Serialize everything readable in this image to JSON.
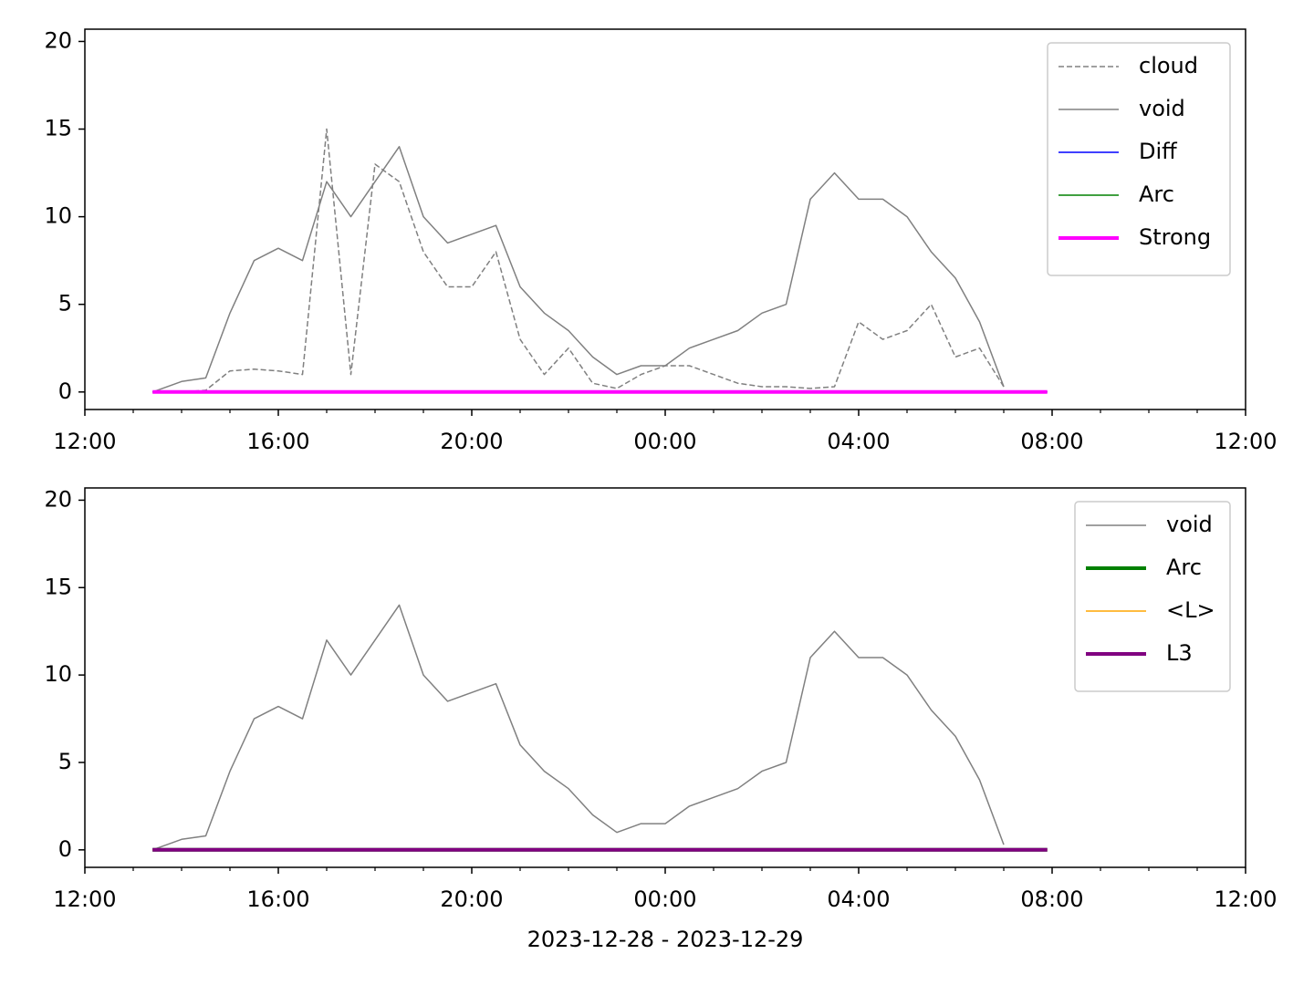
{
  "chart_data": [
    {
      "type": "line",
      "x": [
        13.4,
        14,
        14.5,
        15,
        15.5,
        16,
        16.5,
        17,
        17.5,
        18,
        18.5,
        19,
        19.5,
        20,
        20.5,
        21,
        21.5,
        22,
        22.5,
        23,
        23.5,
        24,
        24.5,
        25,
        25.5,
        26,
        26.5,
        27,
        27.5,
        28,
        28.5,
        29,
        29.5,
        30,
        30.5,
        31,
        31.5,
        31.9
      ],
      "xlim": [
        12,
        36
      ],
      "xticks": [
        {
          "value": 12,
          "label": "12:00"
        },
        {
          "value": 16,
          "label": "16:00"
        },
        {
          "value": 20,
          "label": "20:00"
        },
        {
          "value": 24,
          "label": "00:00"
        },
        {
          "value": 28,
          "label": "04:00"
        },
        {
          "value": 32,
          "label": "08:00"
        },
        {
          "value": 36,
          "label": "12:00"
        }
      ],
      "xminorticks": [
        13,
        14,
        15,
        17,
        18,
        19,
        21,
        22,
        23,
        25,
        26,
        27,
        29,
        30,
        31,
        33,
        34,
        35
      ],
      "ylim": [
        -1,
        20.7
      ],
      "yticks": [
        0,
        5,
        10,
        15,
        20
      ],
      "legend": "upper right",
      "series": [
        {
          "name": "cloud",
          "color": "#808080",
          "dashed": true,
          "linewidth": 1.5,
          "values": [
            0,
            0,
            0.1,
            1.2,
            1.3,
            1.2,
            1,
            15,
            1,
            13,
            12,
            8,
            6,
            6,
            8,
            3,
            1,
            2.5,
            0.5,
            0.2,
            1,
            1.5,
            1.5,
            1,
            0.5,
            0.3,
            0.3,
            0.2,
            0.3,
            4,
            3,
            3.5,
            5,
            2,
            2.5,
            0.3,
            null,
            null
          ]
        },
        {
          "name": "void",
          "color": "#808080",
          "linewidth": 1.5,
          "values": [
            0,
            0.6,
            0.8,
            4.5,
            7.5,
            8.2,
            7.5,
            12,
            10,
            12,
            14,
            10,
            8.5,
            9,
            9.5,
            6,
            4.5,
            3.5,
            2,
            1,
            1.5,
            1.5,
            2.5,
            3,
            3.5,
            4.5,
            5,
            11,
            12.5,
            11,
            11,
            10,
            8,
            6.5,
            4,
            0.3,
            null,
            null
          ]
        },
        {
          "name": "Diff",
          "color": "#0000ff",
          "linewidth": 1.5,
          "values": [
            0,
            0,
            0,
            0,
            0,
            0,
            0,
            0,
            0,
            0,
            0,
            0,
            0,
            0,
            0,
            0,
            0,
            0,
            0,
            0,
            0,
            0,
            0,
            0,
            0,
            0,
            0,
            0,
            0,
            0,
            0,
            0,
            0,
            0,
            0,
            0,
            0,
            0
          ]
        },
        {
          "name": "Arc",
          "color": "#008000",
          "linewidth": 1.5,
          "values": [
            0,
            0,
            0,
            0,
            0,
            0,
            0,
            0,
            0,
            0,
            0,
            0,
            0,
            0,
            0,
            0,
            0,
            0,
            0,
            0,
            0,
            0,
            0,
            0,
            0,
            0,
            0,
            0,
            0,
            0,
            0,
            0,
            0,
            0,
            0,
            0,
            0,
            0
          ]
        },
        {
          "name": "Strong",
          "color": "#ff00ff",
          "linewidth": 4,
          "values": [
            0,
            0,
            0,
            0,
            0,
            0,
            0,
            0,
            0,
            0,
            0,
            0,
            0,
            0,
            0,
            0,
            0,
            0,
            0,
            0,
            0,
            0,
            0,
            0,
            0,
            0,
            0,
            0,
            0,
            0,
            0,
            0,
            0,
            0,
            0,
            0,
            0,
            0
          ]
        }
      ]
    },
    {
      "type": "line",
      "xlabel": "2023-12-28 - 2023-12-29",
      "x": [
        13.4,
        14,
        14.5,
        15,
        15.5,
        16,
        16.5,
        17,
        17.5,
        18,
        18.5,
        19,
        19.5,
        20,
        20.5,
        21,
        21.5,
        22,
        22.5,
        23,
        23.5,
        24,
        24.5,
        25,
        25.5,
        26,
        26.5,
        27,
        27.5,
        28,
        28.5,
        29,
        29.5,
        30,
        30.5,
        31,
        31.5,
        31.9
      ],
      "xlim": [
        12,
        36
      ],
      "xticks": [
        {
          "value": 12,
          "label": "12:00"
        },
        {
          "value": 16,
          "label": "16:00"
        },
        {
          "value": 20,
          "label": "20:00"
        },
        {
          "value": 24,
          "label": "00:00"
        },
        {
          "value": 28,
          "label": "04:00"
        },
        {
          "value": 32,
          "label": "08:00"
        },
        {
          "value": 36,
          "label": "12:00"
        }
      ],
      "xminorticks": [
        13,
        14,
        15,
        17,
        18,
        19,
        21,
        22,
        23,
        25,
        26,
        27,
        29,
        30,
        31,
        33,
        34,
        35
      ],
      "ylim": [
        -1,
        20.7
      ],
      "yticks": [
        0,
        5,
        10,
        15,
        20
      ],
      "legend": "upper right",
      "series": [
        {
          "name": "void",
          "color": "#808080",
          "linewidth": 1.5,
          "values": [
            0,
            0.6,
            0.8,
            4.5,
            7.5,
            8.2,
            7.5,
            12,
            10,
            12,
            14,
            10,
            8.5,
            9,
            9.5,
            6,
            4.5,
            3.5,
            2,
            1,
            1.5,
            1.5,
            2.5,
            3,
            3.5,
            4.5,
            5,
            11,
            12.5,
            11,
            11,
            10,
            8,
            6.5,
            4,
            0.3,
            null,
            null
          ]
        },
        {
          "name": "Arc",
          "color": "#008000",
          "linewidth": 4,
          "values": [
            0,
            0,
            0,
            0,
            0,
            0,
            0,
            0,
            0,
            0,
            0,
            0,
            0,
            0,
            0,
            0,
            0,
            0,
            0,
            0,
            0,
            0,
            0,
            0,
            0,
            0,
            0,
            0,
            0,
            0,
            0,
            0,
            0,
            0,
            0,
            0,
            0,
            0
          ]
        },
        {
          "name": "<L>",
          "color": "#ffa500",
          "linewidth": 1.5,
          "values": [
            0,
            0,
            0,
            0,
            0,
            0,
            0,
            0,
            0,
            0,
            0,
            0,
            0,
            0,
            0,
            0,
            0,
            0,
            0,
            0,
            0,
            0,
            0,
            0,
            0,
            0,
            0,
            0,
            0,
            0,
            0,
            0,
            0,
            0,
            0,
            0,
            0,
            0
          ]
        },
        {
          "name": "L3",
          "color": "#800080",
          "linewidth": 4,
          "values": [
            0,
            0,
            0,
            0,
            0,
            0,
            0,
            0,
            0,
            0,
            0,
            0,
            0,
            0,
            0,
            0,
            0,
            0,
            0,
            0,
            0,
            0,
            0,
            0,
            0,
            0,
            0,
            0,
            0,
            0,
            0,
            0,
            0,
            0,
            0,
            0,
            0,
            0
          ]
        }
      ]
    }
  ]
}
